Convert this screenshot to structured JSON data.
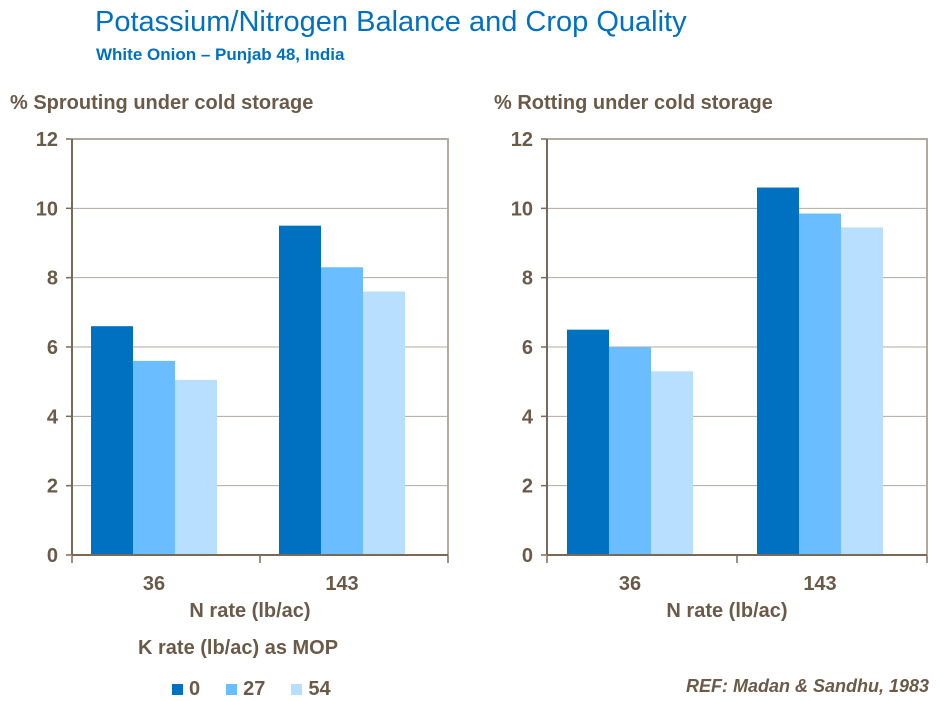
{
  "title": "Potassium/Nitrogen Balance and Crop Quality",
  "subtitle": "White Onion – Punjab 48, India",
  "reference": "REF: Madan & Sandhu, 1983",
  "legend": {
    "title": "K rate (lb/ac) as MOP",
    "placement": "bottom-left"
  },
  "chart_data": [
    {
      "type": "bar",
      "title": "",
      "ylabel": "% Sprouting under cold storage",
      "xlabel": "N rate (lb/ac)",
      "categories": [
        "36",
        "143"
      ],
      "ylim": [
        0,
        12
      ],
      "yticks": [
        0,
        2,
        4,
        6,
        8,
        10,
        12
      ],
      "grid": true,
      "series": [
        {
          "name": "0",
          "color": "#0070c0",
          "values": [
            6.6,
            9.5
          ]
        },
        {
          "name": "27",
          "color": "#6abeff",
          "values": [
            5.6,
            8.3
          ]
        },
        {
          "name": "54",
          "color": "#b8dfff",
          "values": [
            5.05,
            7.6
          ]
        }
      ]
    },
    {
      "type": "bar",
      "title": "",
      "ylabel": "% Rotting under cold storage",
      "xlabel": "N rate (lb/ac)",
      "categories": [
        "36",
        "143"
      ],
      "ylim": [
        0,
        12
      ],
      "yticks": [
        0,
        2,
        4,
        6,
        8,
        10,
        12
      ],
      "grid": true,
      "series": [
        {
          "name": "0",
          "color": "#0070c0",
          "values": [
            6.5,
            10.6
          ]
        },
        {
          "name": "27",
          "color": "#6abeff",
          "values": [
            6.0,
            9.85
          ]
        },
        {
          "name": "54",
          "color": "#b8dfff",
          "values": [
            5.3,
            9.45
          ]
        }
      ]
    }
  ]
}
